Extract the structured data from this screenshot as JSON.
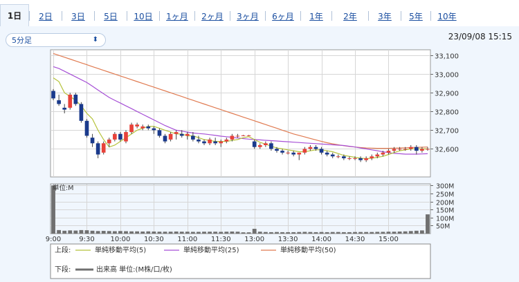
{
  "tabs": [
    {
      "label": "1日",
      "active": true
    },
    {
      "label": "2日",
      "active": false
    },
    {
      "label": "3日",
      "active": false
    },
    {
      "label": "5日",
      "active": false
    },
    {
      "label": "10日",
      "active": false
    },
    {
      "label": "1ヶ月",
      "active": false
    },
    {
      "label": "2ヶ月",
      "active": false
    },
    {
      "label": "3ヶ月",
      "active": false
    },
    {
      "label": "6ヶ月",
      "active": false
    },
    {
      "label": "1年",
      "active": false
    },
    {
      "label": "2年",
      "active": false
    },
    {
      "label": "3年",
      "active": false
    },
    {
      "label": "5年",
      "active": false
    },
    {
      "label": "10年",
      "active": false
    }
  ],
  "interval_select": {
    "value": "5分足",
    "icon": "updown-chevron-icon"
  },
  "timestamp": "23/09/08 15:15",
  "colors": {
    "up": "#e8423a",
    "down": "#1a3a8c",
    "ma5": "#b5c23a",
    "ma25": "#a64fd6",
    "ma50": "#e07a50",
    "volume": "#707070",
    "grid": "#d6d6d6",
    "tab_text": "#1a4ea0"
  },
  "chart_data": {
    "type": "candlestick",
    "price_ylim": [
      32450,
      33130
    ],
    "price_ticks": [
      "33,100",
      "33,000",
      "32,900",
      "32,800",
      "32,700",
      "32,600"
    ],
    "price_tick_values": [
      33100,
      33000,
      32900,
      32800,
      32700,
      32600
    ],
    "x_ticks": [
      "9:00",
      "9:30",
      "10:00",
      "10:30",
      "11:00",
      "11:30",
      "13:00",
      "13:30",
      "14:00",
      "14:30",
      "15:00"
    ],
    "candles": [
      [
        32910,
        32920,
        32860,
        32870
      ],
      [
        32860,
        32890,
        32830,
        32840
      ],
      [
        32820,
        32840,
        32790,
        32810
      ],
      [
        32820,
        32900,
        32810,
        32890
      ],
      [
        32890,
        32900,
        32830,
        32840
      ],
      [
        32840,
        32850,
        32740,
        32750
      ],
      [
        32750,
        32760,
        32660,
        32670
      ],
      [
        32660,
        32680,
        32610,
        32630
      ],
      [
        32630,
        32640,
        32550,
        32570
      ],
      [
        32580,
        32640,
        32570,
        32630
      ],
      [
        32630,
        32660,
        32610,
        32650
      ],
      [
        32650,
        32690,
        32640,
        32680
      ],
      [
        32680,
        32690,
        32640,
        32650
      ],
      [
        32640,
        32700,
        32630,
        32690
      ],
      [
        32690,
        32740,
        32680,
        32730
      ],
      [
        32720,
        32740,
        32710,
        32730
      ],
      [
        32710,
        32730,
        32700,
        32720
      ],
      [
        32720,
        32730,
        32700,
        32710
      ],
      [
        32710,
        32720,
        32680,
        32700
      ],
      [
        32700,
        32710,
        32660,
        32670
      ],
      [
        32670,
        32680,
        32630,
        32640
      ],
      [
        32650,
        32690,
        32640,
        32680
      ],
      [
        32680,
        32700,
        32650,
        32690
      ],
      [
        32680,
        32700,
        32660,
        32670
      ],
      [
        32670,
        32690,
        32650,
        32680
      ],
      [
        32670,
        32690,
        32640,
        32650
      ],
      [
        32650,
        32670,
        32630,
        32640
      ],
      [
        32640,
        32650,
        32620,
        32630
      ],
      [
        32630,
        32660,
        32620,
        32650
      ],
      [
        32640,
        32660,
        32620,
        32630
      ],
      [
        32630,
        32650,
        32610,
        32640
      ],
      [
        32640,
        32660,
        32630,
        32650
      ],
      [
        32650,
        32680,
        32640,
        32670
      ],
      [
        32670,
        32680,
        32660,
        32670
      ],
      [
        32672,
        32675,
        32670,
        32672
      ],
      [
        32672,
        32675,
        32670,
        32672
      ],
      [
        32640,
        32650,
        32600,
        32610
      ],
      [
        32610,
        32630,
        32600,
        32620
      ],
      [
        32620,
        32640,
        32610,
        32630
      ],
      [
        32630,
        32640,
        32590,
        32600
      ],
      [
        32600,
        32610,
        32580,
        32590
      ],
      [
        32590,
        32600,
        32570,
        32580
      ],
      [
        32580,
        32590,
        32570,
        32580
      ],
      [
        32580,
        32590,
        32560,
        32570
      ],
      [
        32570,
        32580,
        32540,
        32580
      ],
      [
        32580,
        32610,
        32570,
        32600
      ],
      [
        32600,
        32620,
        32590,
        32610
      ],
      [
        32610,
        32620,
        32590,
        32600
      ],
      [
        32600,
        32610,
        32570,
        32580
      ],
      [
        32580,
        32590,
        32560,
        32570
      ],
      [
        32570,
        32580,
        32550,
        32560
      ],
      [
        32560,
        32570,
        32550,
        32560
      ],
      [
        32560,
        32570,
        32540,
        32550
      ],
      [
        32550,
        32560,
        32540,
        32550
      ],
      [
        32550,
        32560,
        32540,
        32550
      ],
      [
        32550,
        32560,
        32530,
        32540
      ],
      [
        32540,
        32560,
        32530,
        32550
      ],
      [
        32550,
        32570,
        32540,
        32560
      ],
      [
        32560,
        32580,
        32550,
        32570
      ],
      [
        32570,
        32590,
        32560,
        32580
      ],
      [
        32580,
        32600,
        32570,
        32590
      ],
      [
        32590,
        32610,
        32580,
        32600
      ],
      [
        32600,
        32610,
        32590,
        32600
      ],
      [
        32600,
        32610,
        32590,
        32600
      ],
      [
        32600,
        32620,
        32590,
        32610
      ],
      [
        32610,
        32620,
        32570,
        32590
      ],
      [
        32590,
        32610,
        32580,
        32600
      ],
      [
        32600,
        32610,
        32590,
        32600
      ]
    ],
    "ma5": [
      32980,
      32960,
      32900,
      32880,
      32860,
      32830,
      32790,
      32760,
      32700,
      32650,
      32610,
      32620,
      32640,
      32660,
      32680,
      32700,
      32710,
      32720,
      32720,
      32710,
      32700,
      32690,
      32680,
      32680,
      32670,
      32670,
      32660,
      32650,
      32645,
      32640,
      32640,
      32640,
      32645,
      32650,
      32660,
      32665,
      32650,
      32635,
      32625,
      32615,
      32605,
      32600,
      32595,
      32590,
      32585,
      32585,
      32590,
      32595,
      32595,
      32590,
      32585,
      32575,
      32565,
      32560,
      32555,
      32550,
      32548,
      32550,
      32555,
      32560,
      32570,
      32580,
      32590,
      32595,
      32600,
      32600,
      32600,
      32600
    ],
    "ma25": [
      33040,
      33030,
      33015,
      33000,
      32985,
      32970,
      32955,
      32935,
      32915,
      32895,
      32875,
      32860,
      32845,
      32830,
      32815,
      32800,
      32785,
      32770,
      32755,
      32740,
      32725,
      32712,
      32700,
      32695,
      32690,
      32685,
      32682,
      32680,
      32676,
      32672,
      32668,
      32665,
      32662,
      32658,
      32655,
      32652,
      32650,
      32648,
      32646,
      32644,
      32642,
      32640,
      32638,
      32636,
      32634,
      32632,
      32630,
      32628,
      32626,
      32624,
      32622,
      32620,
      32618,
      32614,
      32610,
      32605,
      32600,
      32595,
      32590,
      32585,
      32580,
      32576,
      32574,
      32572,
      32572,
      32572,
      32573,
      32574
    ],
    "ma50": [
      33110,
      33100,
      33090,
      33080,
      33070,
      33060,
      33050,
      33040,
      33030,
      33020,
      33010,
      33000,
      32990,
      32980,
      32970,
      32960,
      32950,
      32940,
      32930,
      32920,
      32910,
      32900,
      32890,
      32880,
      32870,
      32860,
      32850,
      32840,
      32830,
      32820,
      32810,
      32800,
      32790,
      32780,
      32770,
      32760,
      32750,
      32740,
      32730,
      32720,
      32710,
      32700,
      32690,
      32680,
      32672,
      32664,
      32656,
      32648,
      32640,
      32633,
      32627,
      32622,
      32617,
      32613,
      32610,
      32607,
      32605,
      32604,
      32603,
      32603,
      32603,
      32604,
      32605,
      32606,
      32607,
      32608,
      32609,
      32610
    ],
    "volume_ylim": [
      0,
      310
    ],
    "volume_ticks": [
      "300M",
      "250M",
      "200M",
      "150M",
      "100M",
      "50M"
    ],
    "volume_tick_values": [
      300,
      250,
      200,
      150,
      100,
      50
    ],
    "volume_unit_label": "単位:M",
    "volume": [
      300,
      22,
      18,
      20,
      19,
      22,
      21,
      18,
      16,
      17,
      16,
      15,
      16,
      15,
      14,
      14,
      13,
      14,
      13,
      12,
      12,
      12,
      13,
      12,
      12,
      11,
      11,
      12,
      12,
      12,
      11,
      12,
      13,
      12,
      8,
      8,
      30,
      12,
      10,
      9,
      10,
      9,
      9,
      9,
      10,
      11,
      10,
      9,
      10,
      9,
      10,
      10,
      9,
      9,
      10,
      10,
      10,
      10,
      11,
      11,
      12,
      12,
      13,
      14,
      16,
      18,
      20,
      120
    ],
    "legend": {
      "upper_label": "上段:",
      "lower_label": "下段:",
      "ma5": "単純移動平均(5)",
      "ma25": "単純移動平均(25)",
      "ma50": "単純移動平均(50)",
      "volume": "出来高 単位:(M株/口/枚)"
    }
  }
}
